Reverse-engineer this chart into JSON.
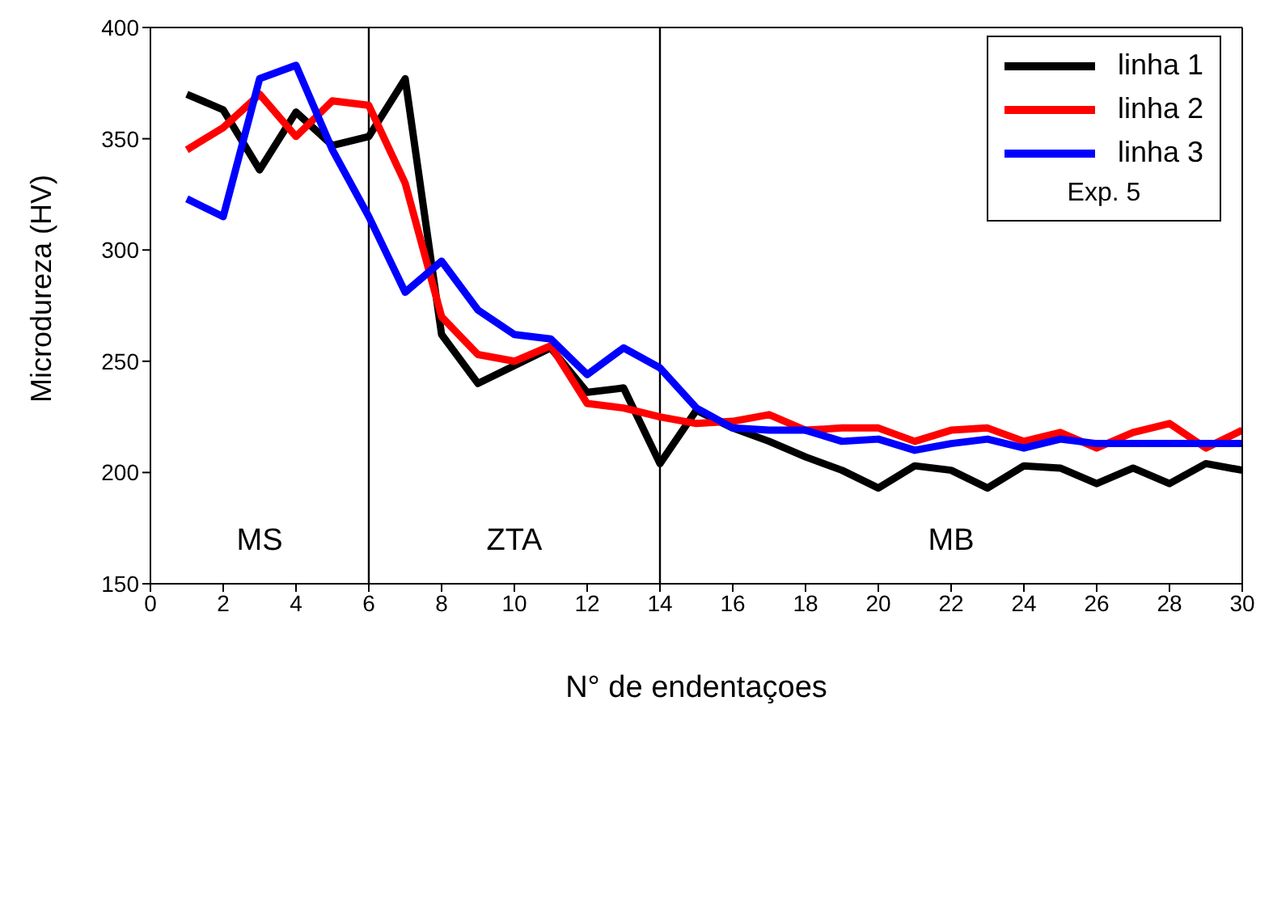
{
  "chart_data": {
    "type": "line",
    "xlabel": "N° de endentaçoes",
    "ylabel": "Microdureza (HV)",
    "legend_title": "Exp. 5",
    "x": [
      1,
      2,
      3,
      4,
      5,
      6,
      7,
      8,
      9,
      10,
      11,
      12,
      13,
      14,
      15,
      16,
      17,
      18,
      19,
      20,
      21,
      22,
      23,
      24,
      25,
      26,
      27,
      28,
      29,
      30
    ],
    "series": [
      {
        "name": "linha 1",
        "color": "#000000",
        "values": [
          370,
          363,
          336,
          362,
          347,
          351,
          377,
          262,
          240,
          248,
          256,
          236,
          238,
          204,
          228,
          220,
          214,
          207,
          201,
          193,
          203,
          201,
          193,
          203,
          202,
          195,
          202,
          195,
          204,
          201
        ]
      },
      {
        "name": "linha 2",
        "color": "#ff0000",
        "values": [
          345,
          355,
          370,
          351,
          367,
          365,
          330,
          270,
          253,
          250,
          257,
          231,
          229,
          225,
          222,
          223,
          226,
          219,
          220,
          220,
          214,
          219,
          220,
          214,
          218,
          211,
          218,
          222,
          211,
          219
        ]
      },
      {
        "name": "linha 3",
        "color": "#0000ff",
        "values": [
          323,
          315,
          377,
          383,
          345,
          315,
          281,
          295,
          273,
          262,
          260,
          244,
          256,
          247,
          229,
          220,
          219,
          219,
          214,
          215,
          210,
          213,
          215,
          211,
          215,
          213,
          213,
          213,
          213,
          213
        ]
      }
    ],
    "xlim": [
      0,
      30
    ],
    "xticks": [
      0,
      2,
      4,
      6,
      8,
      10,
      12,
      14,
      16,
      18,
      20,
      22,
      24,
      26,
      28,
      30
    ],
    "ylim": [
      150,
      400
    ],
    "yticks": [
      150,
      200,
      250,
      300,
      350,
      400
    ],
    "ref_lines": [
      {
        "axis": "x",
        "value": 6,
        "color": "#000000"
      },
      {
        "axis": "x",
        "value": 14,
        "color": "#000000"
      }
    ],
    "annotations": [
      "MS",
      "ZTA",
      "MB"
    ],
    "grid": false,
    "legend": "top right",
    "marker": "none",
    "line_style": "solid"
  }
}
